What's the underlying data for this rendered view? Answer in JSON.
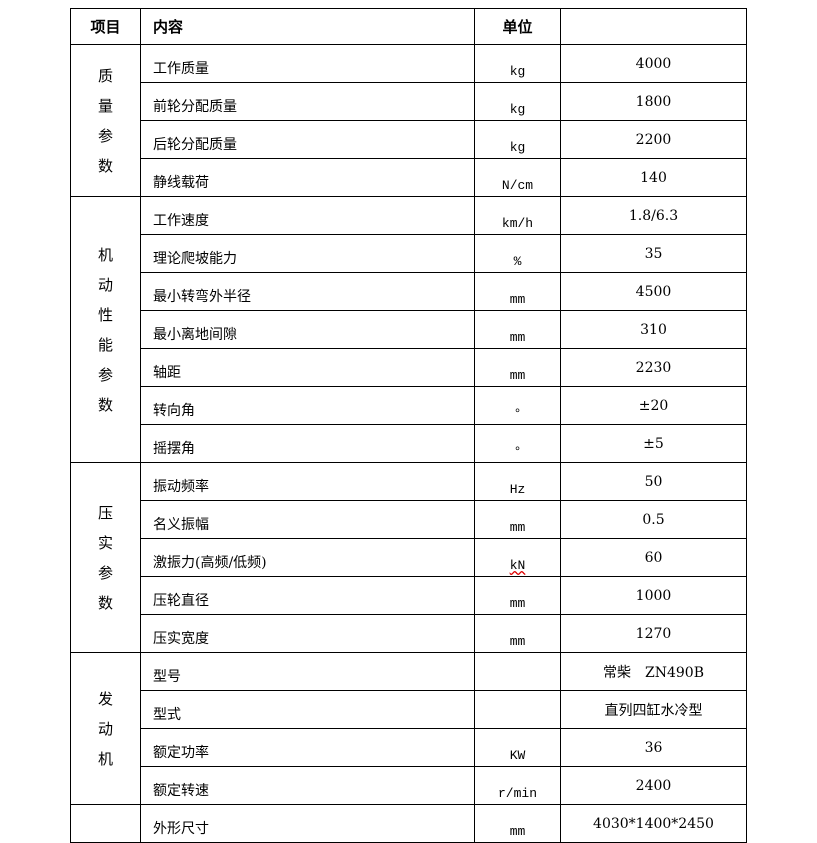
{
  "header": {
    "item": "项目",
    "content": "内容",
    "unit": "单位",
    "value": ""
  },
  "groups": [
    {
      "label": [
        "质",
        "量",
        "参",
        "数"
      ],
      "rows": [
        {
          "content": "工作质量",
          "unit": "kg",
          "value": "4000"
        },
        {
          "content": "前轮分配质量",
          "unit": "kg",
          "value": "1800"
        },
        {
          "content": "后轮分配质量",
          "unit": "kg",
          "value": "2200"
        },
        {
          "content": "静线载荷",
          "unit": "N/cm",
          "value": "140"
        }
      ]
    },
    {
      "label": [
        "机",
        "动",
        "性",
        "能",
        "参",
        "数"
      ],
      "rows": [
        {
          "content": "工作速度",
          "unit": "km/h",
          "value": "1.8/6.3"
        },
        {
          "content": "理论爬坡能力",
          "unit": "%",
          "value": "35"
        },
        {
          "content": "最小转弯外半径",
          "unit": "mm",
          "value": "4500"
        },
        {
          "content": "最小离地间隙",
          "unit": "mm",
          "value": "310"
        },
        {
          "content": "轴距",
          "unit": "mm",
          "value": "2230"
        },
        {
          "content": "转向角",
          "unit": "°",
          "value": "±20"
        },
        {
          "content": "摇摆角",
          "unit": "°",
          "value": "±5"
        }
      ]
    },
    {
      "label": [
        "压",
        "实",
        "参",
        "数"
      ],
      "rows": [
        {
          "content": "振动频率",
          "unit": "Hz",
          "value": "50"
        },
        {
          "content": "名义振幅",
          "unit": "mm",
          "value": "0.5"
        },
        {
          "content": "激振力(高频/低频)",
          "unit": "kN",
          "value": "60"
        },
        {
          "content": "压轮直径",
          "unit": "mm",
          "value": "1000"
        },
        {
          "content": "压实宽度",
          "unit": "mm",
          "value": "1270"
        }
      ]
    },
    {
      "label": [
        "发",
        "动",
        "机"
      ],
      "rows": [
        {
          "content": "型号",
          "unit": "",
          "value": "常柴　ZN490B"
        },
        {
          "content": "型式",
          "unit": "",
          "value": "直列四缸水冷型"
        },
        {
          "content": "额定功率",
          "unit": "KW",
          "value": "36"
        },
        {
          "content": "额定转速",
          "unit": "r/min",
          "value": "2400"
        }
      ]
    },
    {
      "label": [],
      "rows": [
        {
          "content": "外形尺寸",
          "unit": "mm",
          "value": "4030*1400*2450"
        }
      ]
    }
  ]
}
